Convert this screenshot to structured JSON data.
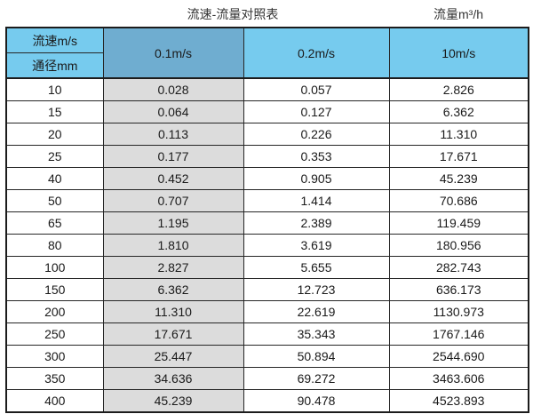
{
  "page": {
    "title_left": "流速-流量对照表",
    "title_right": "流量m³/h"
  },
  "table": {
    "corner_top": "流速m/s",
    "corner_bottom": "通径mm",
    "velocity_headers": [
      "0.1m/s",
      "0.2m/s",
      "10m/s"
    ],
    "rows": [
      {
        "diameter": "10",
        "values": [
          "0.028",
          "0.057",
          "2.826"
        ]
      },
      {
        "diameter": "15",
        "values": [
          "0.064",
          "0.127",
          "6.362"
        ]
      },
      {
        "diameter": "20",
        "values": [
          "0.113",
          "0.226",
          "11.310"
        ]
      },
      {
        "diameter": "25",
        "values": [
          "0.177",
          "0.353",
          "17.671"
        ]
      },
      {
        "diameter": "40",
        "values": [
          "0.452",
          "0.905",
          "45.239"
        ]
      },
      {
        "diameter": "50",
        "values": [
          "0.707",
          "1.414",
          "70.686"
        ]
      },
      {
        "diameter": "65",
        "values": [
          "1.195",
          "2.389",
          "119.459"
        ]
      },
      {
        "diameter": "80",
        "values": [
          "1.810",
          "3.619",
          "180.956"
        ]
      },
      {
        "diameter": "100",
        "values": [
          "2.827",
          "5.655",
          "282.743"
        ]
      },
      {
        "diameter": "150",
        "values": [
          "6.362",
          "12.723",
          "636.173"
        ]
      },
      {
        "diameter": "200",
        "values": [
          "11.310",
          "22.619",
          "1130.973"
        ]
      },
      {
        "diameter": "250",
        "values": [
          "17.671",
          "35.343",
          "1767.146"
        ]
      },
      {
        "diameter": "300",
        "values": [
          "25.447",
          "50.894",
          "2544.690"
        ]
      },
      {
        "diameter": "350",
        "values": [
          "34.636",
          "69.272",
          "3463.606"
        ]
      },
      {
        "diameter": "400",
        "values": [
          "45.239",
          "90.478",
          "4523.893"
        ]
      }
    ]
  },
  "colors": {
    "header_light_blue": "#76cbee",
    "header_dark_blue": "#6fadd0",
    "gray_column": "#dcdcdc",
    "border": "#1c1c1c",
    "background": "#ffffff"
  },
  "chart_data": {
    "type": "table",
    "title": "流速-流量对照表",
    "unit_label": "流量m³/h",
    "row_axis_label": "通径mm",
    "column_axis_label": "流速m/s",
    "categories": [
      10,
      15,
      20,
      25,
      40,
      50,
      65,
      80,
      100,
      150,
      200,
      250,
      300,
      350,
      400
    ],
    "series": [
      {
        "name": "0.1m/s",
        "values": [
          0.028,
          0.064,
          0.113,
          0.177,
          0.452,
          0.707,
          1.195,
          1.81,
          2.827,
          6.362,
          11.31,
          17.671,
          25.447,
          34.636,
          45.239
        ]
      },
      {
        "name": "0.2m/s",
        "values": [
          0.057,
          0.127,
          0.226,
          0.353,
          0.905,
          1.414,
          2.389,
          3.619,
          5.655,
          12.723,
          22.619,
          35.343,
          50.894,
          69.272,
          90.478
        ]
      },
      {
        "name": "10m/s",
        "values": [
          2.826,
          6.362,
          11.31,
          17.671,
          45.239,
          70.686,
          119.459,
          180.956,
          282.743,
          636.173,
          1130.973,
          1767.146,
          2544.69,
          3463.606,
          4523.893
        ]
      }
    ]
  }
}
